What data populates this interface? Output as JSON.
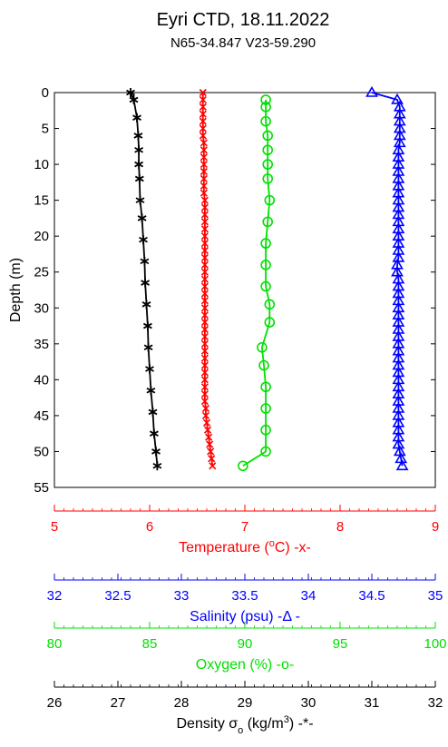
{
  "chart_data": {
    "type": "line",
    "title": "Eyri CTD, 18.11.2022",
    "subtitle": "N65-34.847   V23-59.290",
    "ylabel": "Depth (m)",
    "ylim": [
      0,
      55
    ],
    "y_inverted": true,
    "y_ticks": [
      "0",
      "5",
      "10",
      "15",
      "20",
      "25",
      "30",
      "35",
      "40",
      "45",
      "50",
      "55"
    ],
    "grid": false,
    "axes": [
      {
        "key": "temperature",
        "label_main": "Temperature (",
        "label_sup": "o",
        "label_end": "C)   -x-",
        "color": "#ff0000",
        "xlim": [
          5,
          9
        ],
        "ticks": [
          "5",
          "6",
          "7",
          "8",
          "9"
        ]
      },
      {
        "key": "salinity",
        "label_main": "Salinity (psu)   -",
        "label_sym": "Δ",
        "label_end": " -",
        "color": "#0000ff",
        "xlim": [
          32,
          35
        ],
        "ticks": [
          "32",
          "32.5",
          "33",
          "33.5",
          "34",
          "34.5",
          "35"
        ]
      },
      {
        "key": "oxygen",
        "label_main": "Oxygen (%)   -o-",
        "color": "#00e000",
        "xlim": [
          80,
          100
        ],
        "ticks": [
          "80",
          "85",
          "90",
          "95",
          "100"
        ]
      },
      {
        "key": "density",
        "label_main": "Density σ",
        "label_sub": "o",
        "label_mid": " (kg/m",
        "label_sup": "3",
        "label_end": ")   -*-",
        "color": "#000000",
        "xlim": [
          26,
          32
        ],
        "ticks": [
          "26",
          "27",
          "28",
          "29",
          "30",
          "31",
          "32"
        ]
      }
    ],
    "series": [
      {
        "name": "Temperature",
        "axis": "temperature",
        "marker": "x",
        "color": "#ff0000",
        "depth": [
          0,
          1,
          2,
          3,
          4,
          5,
          6,
          7,
          8,
          9,
          10,
          11,
          12,
          13,
          14,
          15,
          16,
          17,
          18,
          19,
          20,
          21,
          22,
          23,
          24,
          25,
          26,
          27,
          28,
          29,
          30,
          31,
          32,
          33,
          34,
          35,
          36,
          37,
          38,
          39,
          40,
          41,
          42,
          43,
          44,
          45,
          46,
          47,
          48,
          49,
          50,
          51,
          52
        ],
        "values": [
          6.56,
          6.56,
          6.56,
          6.56,
          6.56,
          6.56,
          6.56,
          6.57,
          6.57,
          6.57,
          6.57,
          6.57,
          6.57,
          6.57,
          6.57,
          6.58,
          6.58,
          6.58,
          6.58,
          6.58,
          6.58,
          6.58,
          6.58,
          6.58,
          6.58,
          6.58,
          6.58,
          6.58,
          6.58,
          6.58,
          6.58,
          6.58,
          6.58,
          6.58,
          6.58,
          6.58,
          6.58,
          6.58,
          6.58,
          6.58,
          6.58,
          6.58,
          6.58,
          6.58,
          6.59,
          6.59,
          6.6,
          6.61,
          6.62,
          6.63,
          6.64,
          6.65,
          6.66
        ]
      },
      {
        "name": "Salinity",
        "axis": "salinity",
        "marker": "triangle",
        "color": "#0000ff",
        "depth": [
          0,
          1,
          2,
          3,
          4,
          5,
          6,
          7,
          8,
          9,
          10,
          11,
          12,
          13,
          14,
          15,
          16,
          17,
          18,
          19,
          20,
          21,
          22,
          23,
          24,
          25,
          26,
          27,
          28,
          29,
          30,
          31,
          32,
          33,
          34,
          35,
          36,
          37,
          38,
          39,
          40,
          41,
          42,
          43,
          44,
          45,
          46,
          47,
          48,
          49,
          50,
          51,
          52
        ],
        "values": [
          34.5,
          34.7,
          34.72,
          34.72,
          34.72,
          34.72,
          34.72,
          34.72,
          34.71,
          34.71,
          34.71,
          34.71,
          34.71,
          34.71,
          34.71,
          34.71,
          34.71,
          34.71,
          34.71,
          34.71,
          34.71,
          34.71,
          34.71,
          34.71,
          34.7,
          34.7,
          34.71,
          34.71,
          34.71,
          34.71,
          34.71,
          34.71,
          34.71,
          34.71,
          34.71,
          34.71,
          34.71,
          34.71,
          34.71,
          34.71,
          34.71,
          34.71,
          34.71,
          34.71,
          34.71,
          34.71,
          34.71,
          34.71,
          34.71,
          34.71,
          34.72,
          34.73,
          34.74
        ]
      },
      {
        "name": "Oxygen",
        "axis": "oxygen",
        "marker": "o",
        "color": "#00e000",
        "depth": [
          1,
          2,
          4,
          6,
          8,
          10,
          12,
          15,
          18,
          21,
          24,
          27,
          29.5,
          32,
          35.5,
          38,
          41,
          44,
          47,
          50,
          52
        ],
        "values": [
          91.1,
          91.1,
          91.1,
          91.2,
          91.2,
          91.2,
          91.2,
          91.3,
          91.2,
          91.1,
          91.1,
          91.1,
          91.3,
          91.3,
          90.9,
          91.0,
          91.1,
          91.1,
          91.1,
          91.1,
          89.9
        ]
      },
      {
        "name": "Density",
        "axis": "density",
        "marker": "asterisk",
        "color": "#000000",
        "depth": [
          0,
          1,
          3.5,
          6,
          8,
          10,
          12,
          15,
          17.5,
          20.5,
          23.5,
          26.5,
          29.5,
          32.5,
          35.5,
          38.5,
          41.5,
          44.5,
          47.5,
          50,
          52
        ],
        "values": [
          27.2,
          27.25,
          27.3,
          27.32,
          27.33,
          27.33,
          27.34,
          27.35,
          27.38,
          27.4,
          27.42,
          27.43,
          27.45,
          27.47,
          27.48,
          27.5,
          27.52,
          27.55,
          27.57,
          27.6,
          27.62
        ]
      }
    ]
  }
}
